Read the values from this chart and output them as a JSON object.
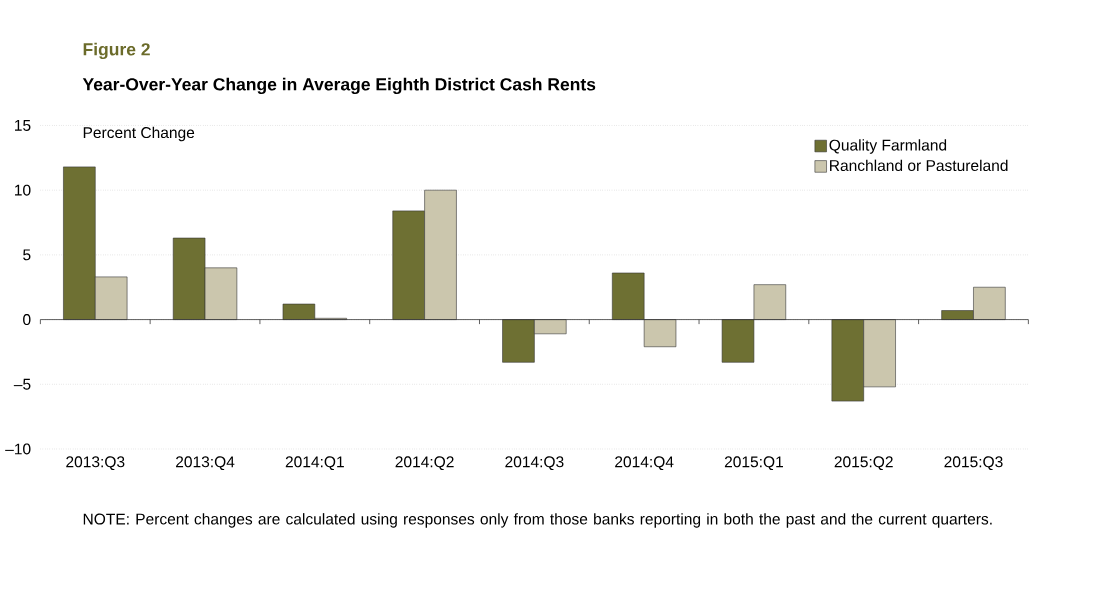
{
  "chart_data": {
    "type": "bar",
    "title": "Figure 2",
    "subtitle": "Year-Over-Year Change in Average Eighth District Cash Rents",
    "ylabel": "Percent Change",
    "categories": [
      "2013:Q3",
      "2013:Q4",
      "2014:Q1",
      "2014:Q2",
      "2014:Q3",
      "2014:Q4",
      "2015:Q1",
      "2015:Q2",
      "2015:Q3"
    ],
    "series": [
      {
        "name": "Quality Farmland",
        "color": "#6e7033",
        "values": [
          11.8,
          6.3,
          1.2,
          8.4,
          -3.3,
          3.6,
          -3.3,
          -6.3,
          0.7
        ]
      },
      {
        "name": "Ranchland or Pastureland",
        "color": "#cbc6ad",
        "values": [
          3.3,
          4.0,
          0.1,
          10.0,
          -1.1,
          -2.1,
          2.7,
          -5.2,
          2.5
        ]
      }
    ],
    "ylim": [
      -10,
      15
    ],
    "yticks": [
      {
        "value": -10,
        "label": "–10"
      },
      {
        "value": -5,
        "label": "–5"
      },
      0,
      5,
      10,
      15
    ],
    "grid": "y",
    "legend": "top right",
    "annotations": [
      "NOTE: Percent changes are calculated using responses only from those banks reporting in both the past and the current quarters."
    ]
  }
}
